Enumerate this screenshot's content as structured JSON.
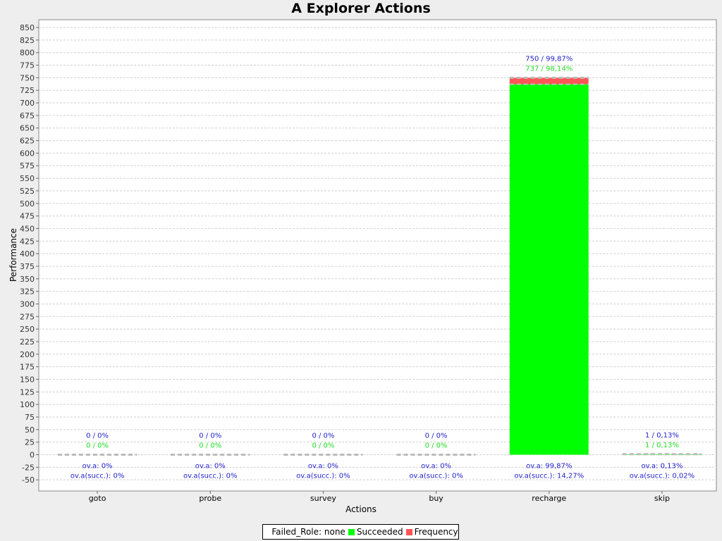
{
  "chart_data": {
    "type": "bar",
    "title": "A Explorer Actions",
    "xlabel": "Actions",
    "ylabel": "Performance",
    "ylim": [
      -60,
      860
    ],
    "yticks": [
      -50,
      -25,
      0,
      25,
      50,
      75,
      100,
      125,
      150,
      175,
      200,
      225,
      250,
      275,
      300,
      325,
      350,
      375,
      400,
      425,
      450,
      475,
      500,
      525,
      550,
      575,
      600,
      625,
      650,
      675,
      700,
      725,
      750,
      775,
      800,
      825,
      850
    ],
    "grid": true,
    "legend_position": "bottom",
    "categories": [
      "goto",
      "probe",
      "survey",
      "buy",
      "recharge",
      "skip"
    ],
    "series": [
      {
        "name": "Failed_Role: none",
        "color": "#ffffff",
        "values": [
          0,
          0,
          0,
          0,
          0,
          0
        ]
      },
      {
        "name": "Succeeded",
        "color": "#00ff00",
        "values": [
          0,
          0,
          0,
          0,
          737,
          1
        ]
      },
      {
        "name": "Frequency",
        "color": "#ff5555",
        "values": [
          0,
          0,
          0,
          0,
          750,
          1
        ]
      }
    ],
    "top_labels": [
      "0 / 0%",
      "0 / 0%",
      "0 / 0%",
      "0 / 0%",
      "750 / 99,87%",
      "1 / 0,13%"
    ],
    "succeeded_labels": [
      "0 / 0%",
      "0 / 0%",
      "0 / 0%",
      "0 / 0%",
      "737 / 98,14%",
      "1 / 0,13%"
    ],
    "ova_labels": [
      "ov.a: 0%",
      "ov.a: 0%",
      "ov.a: 0%",
      "ov.a: 0%",
      "ov.a: 99,87%",
      "ov.a: 0,13%"
    ],
    "ova_succ_labels": [
      "ov.a(succ.): 0%",
      "ov.a(succ.): 0%",
      "ov.a(succ.): 0%",
      "ov.a(succ.): 0%",
      "ov.a(succ.): 14,27%",
      "ov.a(succ.): 0,02%"
    ],
    "label_colors": {
      "top": "#2222cc",
      "succeeded": "#22dd22",
      "ova": "#2222cc"
    }
  },
  "legend": {
    "items": [
      {
        "label": "Failed_Role: none",
        "color": "#ffffff"
      },
      {
        "label": "Succeeded",
        "color": "#00ff00"
      },
      {
        "label": "Frequency",
        "color": "#ff5555"
      }
    ]
  }
}
